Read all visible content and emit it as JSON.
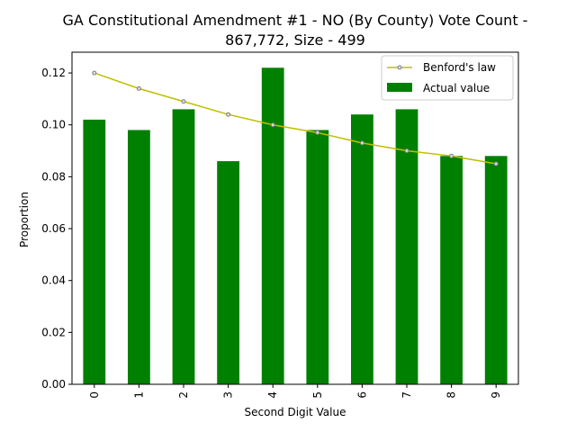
{
  "chart_data": {
    "type": "bar",
    "title_lines": [
      "GA Constitutional Amendment #1 - NO (By County) Vote Count -",
      "867,772, Size - 499"
    ],
    "xlabel": "Second Digit Value",
    "ylabel": "Proportion",
    "categories": [
      "0",
      "1",
      "2",
      "3",
      "4",
      "5",
      "6",
      "7",
      "8",
      "9"
    ],
    "ylim": [
      0,
      0.128
    ],
    "yticks": [
      0.0,
      0.02,
      0.04,
      0.06,
      0.08,
      0.1,
      0.12
    ],
    "ytick_labels": [
      "0.00",
      "0.02",
      "0.04",
      "0.06",
      "0.08",
      "0.10",
      "0.12"
    ],
    "series": [
      {
        "name": "Actual value",
        "kind": "bar",
        "color": "#008000",
        "values": [
          0.102,
          0.098,
          0.106,
          0.086,
          0.122,
          0.098,
          0.104,
          0.106,
          0.088,
          0.088
        ]
      },
      {
        "name": "Benford's law",
        "kind": "line",
        "color": "#bfbf00",
        "marker_fill": "#d9d9d9",
        "marker_edge": "#808080",
        "values": [
          0.12,
          0.114,
          0.109,
          0.104,
          0.1,
          0.097,
          0.093,
          0.09,
          0.088,
          0.085
        ]
      }
    ],
    "legend": {
      "placement": "top-right",
      "entries": [
        "Benford's law",
        "Actual value"
      ]
    },
    "grid": false
  }
}
